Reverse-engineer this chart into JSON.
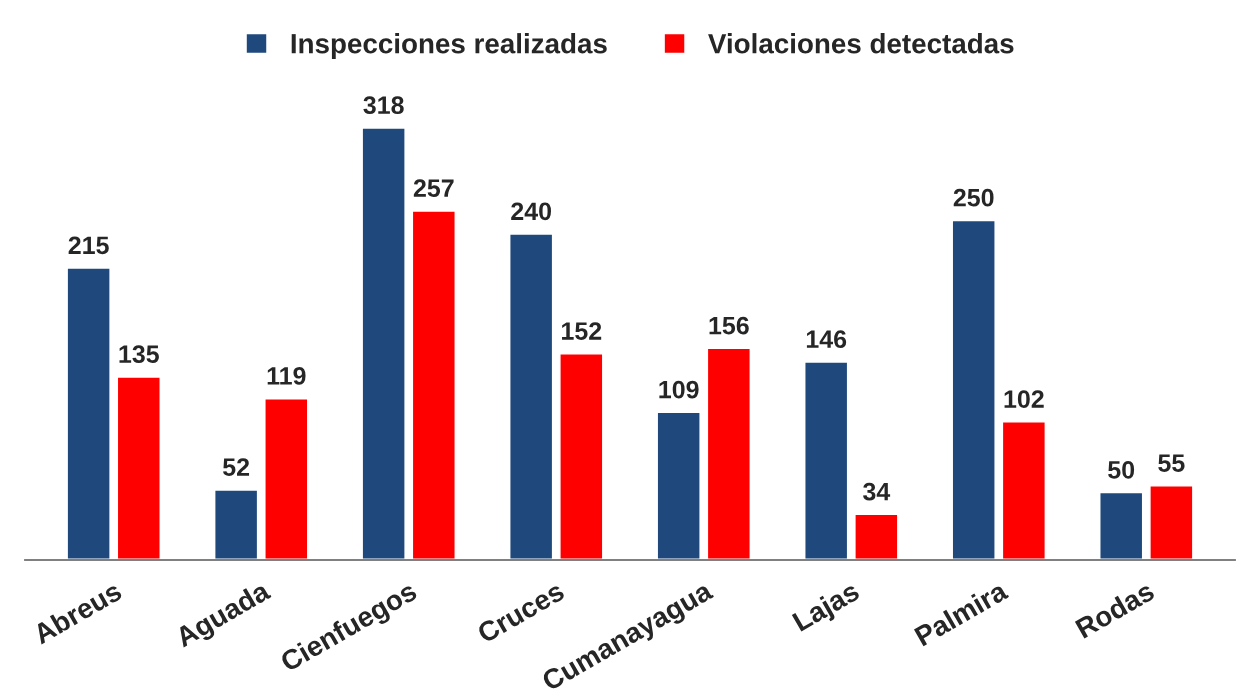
{
  "chart_data": {
    "type": "bar",
    "categories": [
      "Abreus",
      "Aguada",
      "Cienfuegos",
      "Cruces",
      "Cumanayagua",
      "Lajas",
      "Palmira",
      "Rodas"
    ],
    "series": [
      {
        "name": "Inspecciones realizadas",
        "color": "#1f497d",
        "values": [
          215,
          52,
          318,
          240,
          109,
          146,
          250,
          50
        ]
      },
      {
        "name": "Violaciones detectadas",
        "color": "#ff0000",
        "values": [
          135,
          119,
          257,
          152,
          156,
          34,
          102,
          55
        ]
      }
    ],
    "data_labels": true,
    "legend": "top",
    "grid": false,
    "tick_labels": "x"
  }
}
